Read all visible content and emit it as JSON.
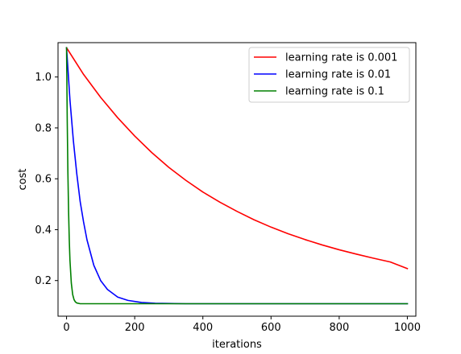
{
  "chart_data": {
    "type": "line",
    "title": "",
    "xlabel": "iterations",
    "ylabel": "cost",
    "xlim": [
      -25,
      1025
    ],
    "ylim": [
      0.06,
      1.135
    ],
    "xticks": [
      0,
      200,
      400,
      600,
      800,
      1000
    ],
    "yticks": [
      0.2,
      0.4,
      0.6,
      0.8,
      1.0
    ],
    "xtick_labels": [
      "0",
      "200",
      "400",
      "600",
      "800",
      "1000"
    ],
    "ytick_labels": [
      "0.2",
      "0.4",
      "0.6",
      "0.8",
      "1.0"
    ],
    "grid": false,
    "legend_position": "top-right",
    "series": [
      {
        "name": "learning rate is 0.001",
        "color": "#ff0000",
        "x": [
          0,
          50,
          100,
          150,
          200,
          250,
          300,
          350,
          400,
          450,
          500,
          550,
          600,
          650,
          700,
          750,
          800,
          850,
          900,
          950,
          1000
        ],
        "y": [
          1.115,
          1.01,
          0.92,
          0.84,
          0.768,
          0.703,
          0.645,
          0.594,
          0.548,
          0.508,
          0.472,
          0.439,
          0.41,
          0.384,
          0.361,
          0.34,
          0.321,
          0.304,
          0.288,
          0.273,
          0.247
        ]
      },
      {
        "name": "learning rate is 0.01",
        "color": "#0000ff",
        "x": [
          0,
          10,
          20,
          30,
          40,
          50,
          60,
          80,
          100,
          120,
          150,
          180,
          220,
          260,
          300,
          350,
          400,
          500,
          600,
          700,
          800,
          900,
          1000
        ],
        "y": [
          1.115,
          0.91,
          0.75,
          0.62,
          0.51,
          0.43,
          0.36,
          0.26,
          0.2,
          0.165,
          0.135,
          0.122,
          0.114,
          0.111,
          0.11,
          0.109,
          0.109,
          0.109,
          0.109,
          0.109,
          0.109,
          0.109,
          0.109
        ]
      },
      {
        "name": "learning rate is 0.1",
        "color": "#008000",
        "x": [
          0,
          2,
          4,
          6,
          8,
          10,
          14,
          18,
          22,
          26,
          30,
          40,
          60,
          100,
          200,
          400,
          600,
          800,
          1000
        ],
        "y": [
          1.115,
          0.83,
          0.62,
          0.47,
          0.36,
          0.28,
          0.19,
          0.145,
          0.125,
          0.116,
          0.112,
          0.109,
          0.109,
          0.109,
          0.109,
          0.109,
          0.109,
          0.109,
          0.109
        ]
      }
    ]
  }
}
